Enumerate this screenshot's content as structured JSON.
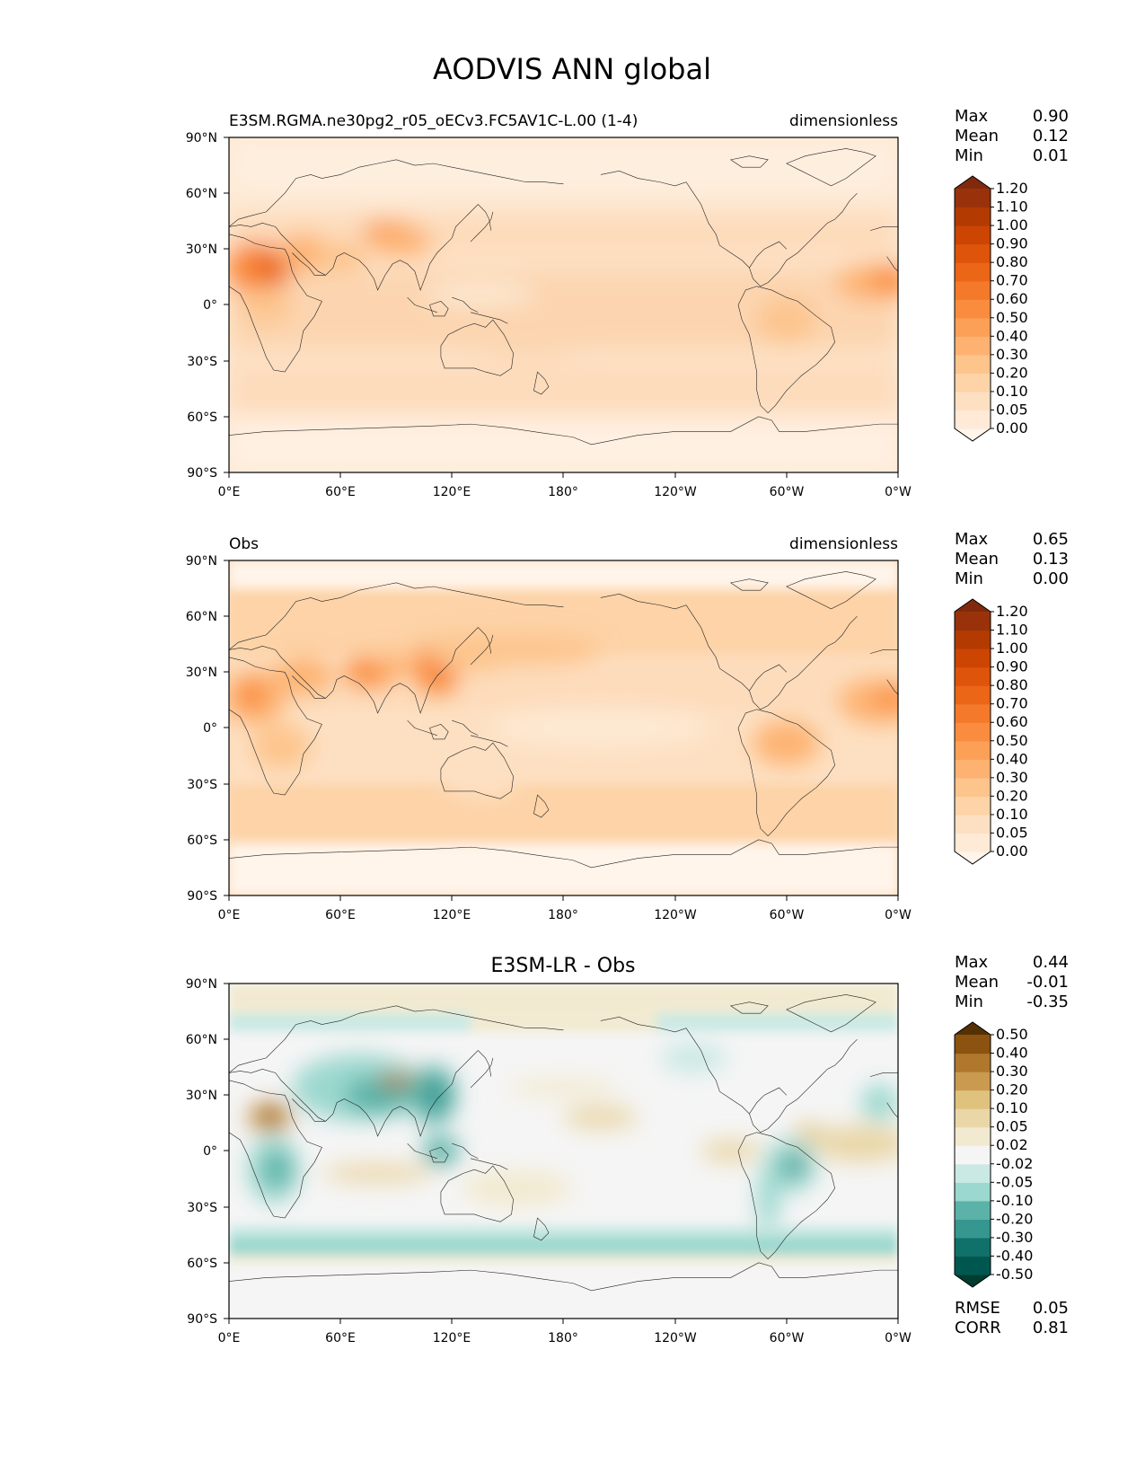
{
  "title": "AODVIS ANN global",
  "lat_ticks": [
    "90°N",
    "60°N",
    "30°N",
    "0°",
    "30°S",
    "60°S",
    "90°S"
  ],
  "lon_ticks": [
    "0°E",
    "60°E",
    "120°E",
    "180°",
    "120°W",
    "60°W",
    "0°W"
  ],
  "stat_labels": {
    "max": "Max",
    "mean": "Mean",
    "min": "Min",
    "rmse": "RMSE",
    "corr": "CORR"
  },
  "panels": [
    {
      "id": "model",
      "left_title": "E3SM.RGMA.ne30pg2_r05_oECv3.FC5AV1C-L.00 (1-4)",
      "center_title": "",
      "right_title": "dimensionless",
      "stats": {
        "max": "0.90",
        "mean": "0.12",
        "min": "0.01"
      },
      "colormap": "aod"
    },
    {
      "id": "obs",
      "left_title": "Obs",
      "center_title": "",
      "right_title": "dimensionless",
      "stats": {
        "max": "0.65",
        "mean": "0.13",
        "min": "0.00"
      },
      "colormap": "aod"
    },
    {
      "id": "diff",
      "left_title": "",
      "center_title": "E3SM-LR - Obs",
      "right_title": "",
      "stats": {
        "max": "0.44",
        "mean": "-0.01",
        "min": "-0.35"
      },
      "extra_stats": {
        "rmse": "0.05",
        "corr": "0.81"
      },
      "colormap": "diff"
    }
  ],
  "colormaps": {
    "aod": {
      "levels": [
        "0.00",
        "0.05",
        "0.10",
        "0.20",
        "0.30",
        "0.40",
        "0.50",
        "0.60",
        "0.70",
        "0.80",
        "0.90",
        "1.00",
        "1.10",
        "1.20"
      ],
      "colors": [
        "#fff5eb",
        "#feead6",
        "#fde0c2",
        "#fdd3a7",
        "#fdc48c",
        "#fdb271",
        "#fda057",
        "#fa8c40",
        "#f4792b",
        "#eb6617",
        "#de540a",
        "#cc4503",
        "#b33b02",
        "#99320b",
        "#80290d"
      ]
    },
    "diff": {
      "levels": [
        "-0.50",
        "-0.40",
        "-0.30",
        "-0.20",
        "-0.10",
        "-0.05",
        "-0.02",
        "0.02",
        "0.05",
        "0.10",
        "0.20",
        "0.30",
        "0.40",
        "0.50"
      ],
      "colors": [
        "#003c30",
        "#00574f",
        "#10716a",
        "#35978f",
        "#5ab2a8",
        "#9bd8cf",
        "#cae9e4",
        "#f5f5f5",
        "#f2ead0",
        "#ead7a8",
        "#dfc27d",
        "#c99a4f",
        "#b0782c",
        "#8c5210",
        "#543005"
      ]
    }
  }
}
